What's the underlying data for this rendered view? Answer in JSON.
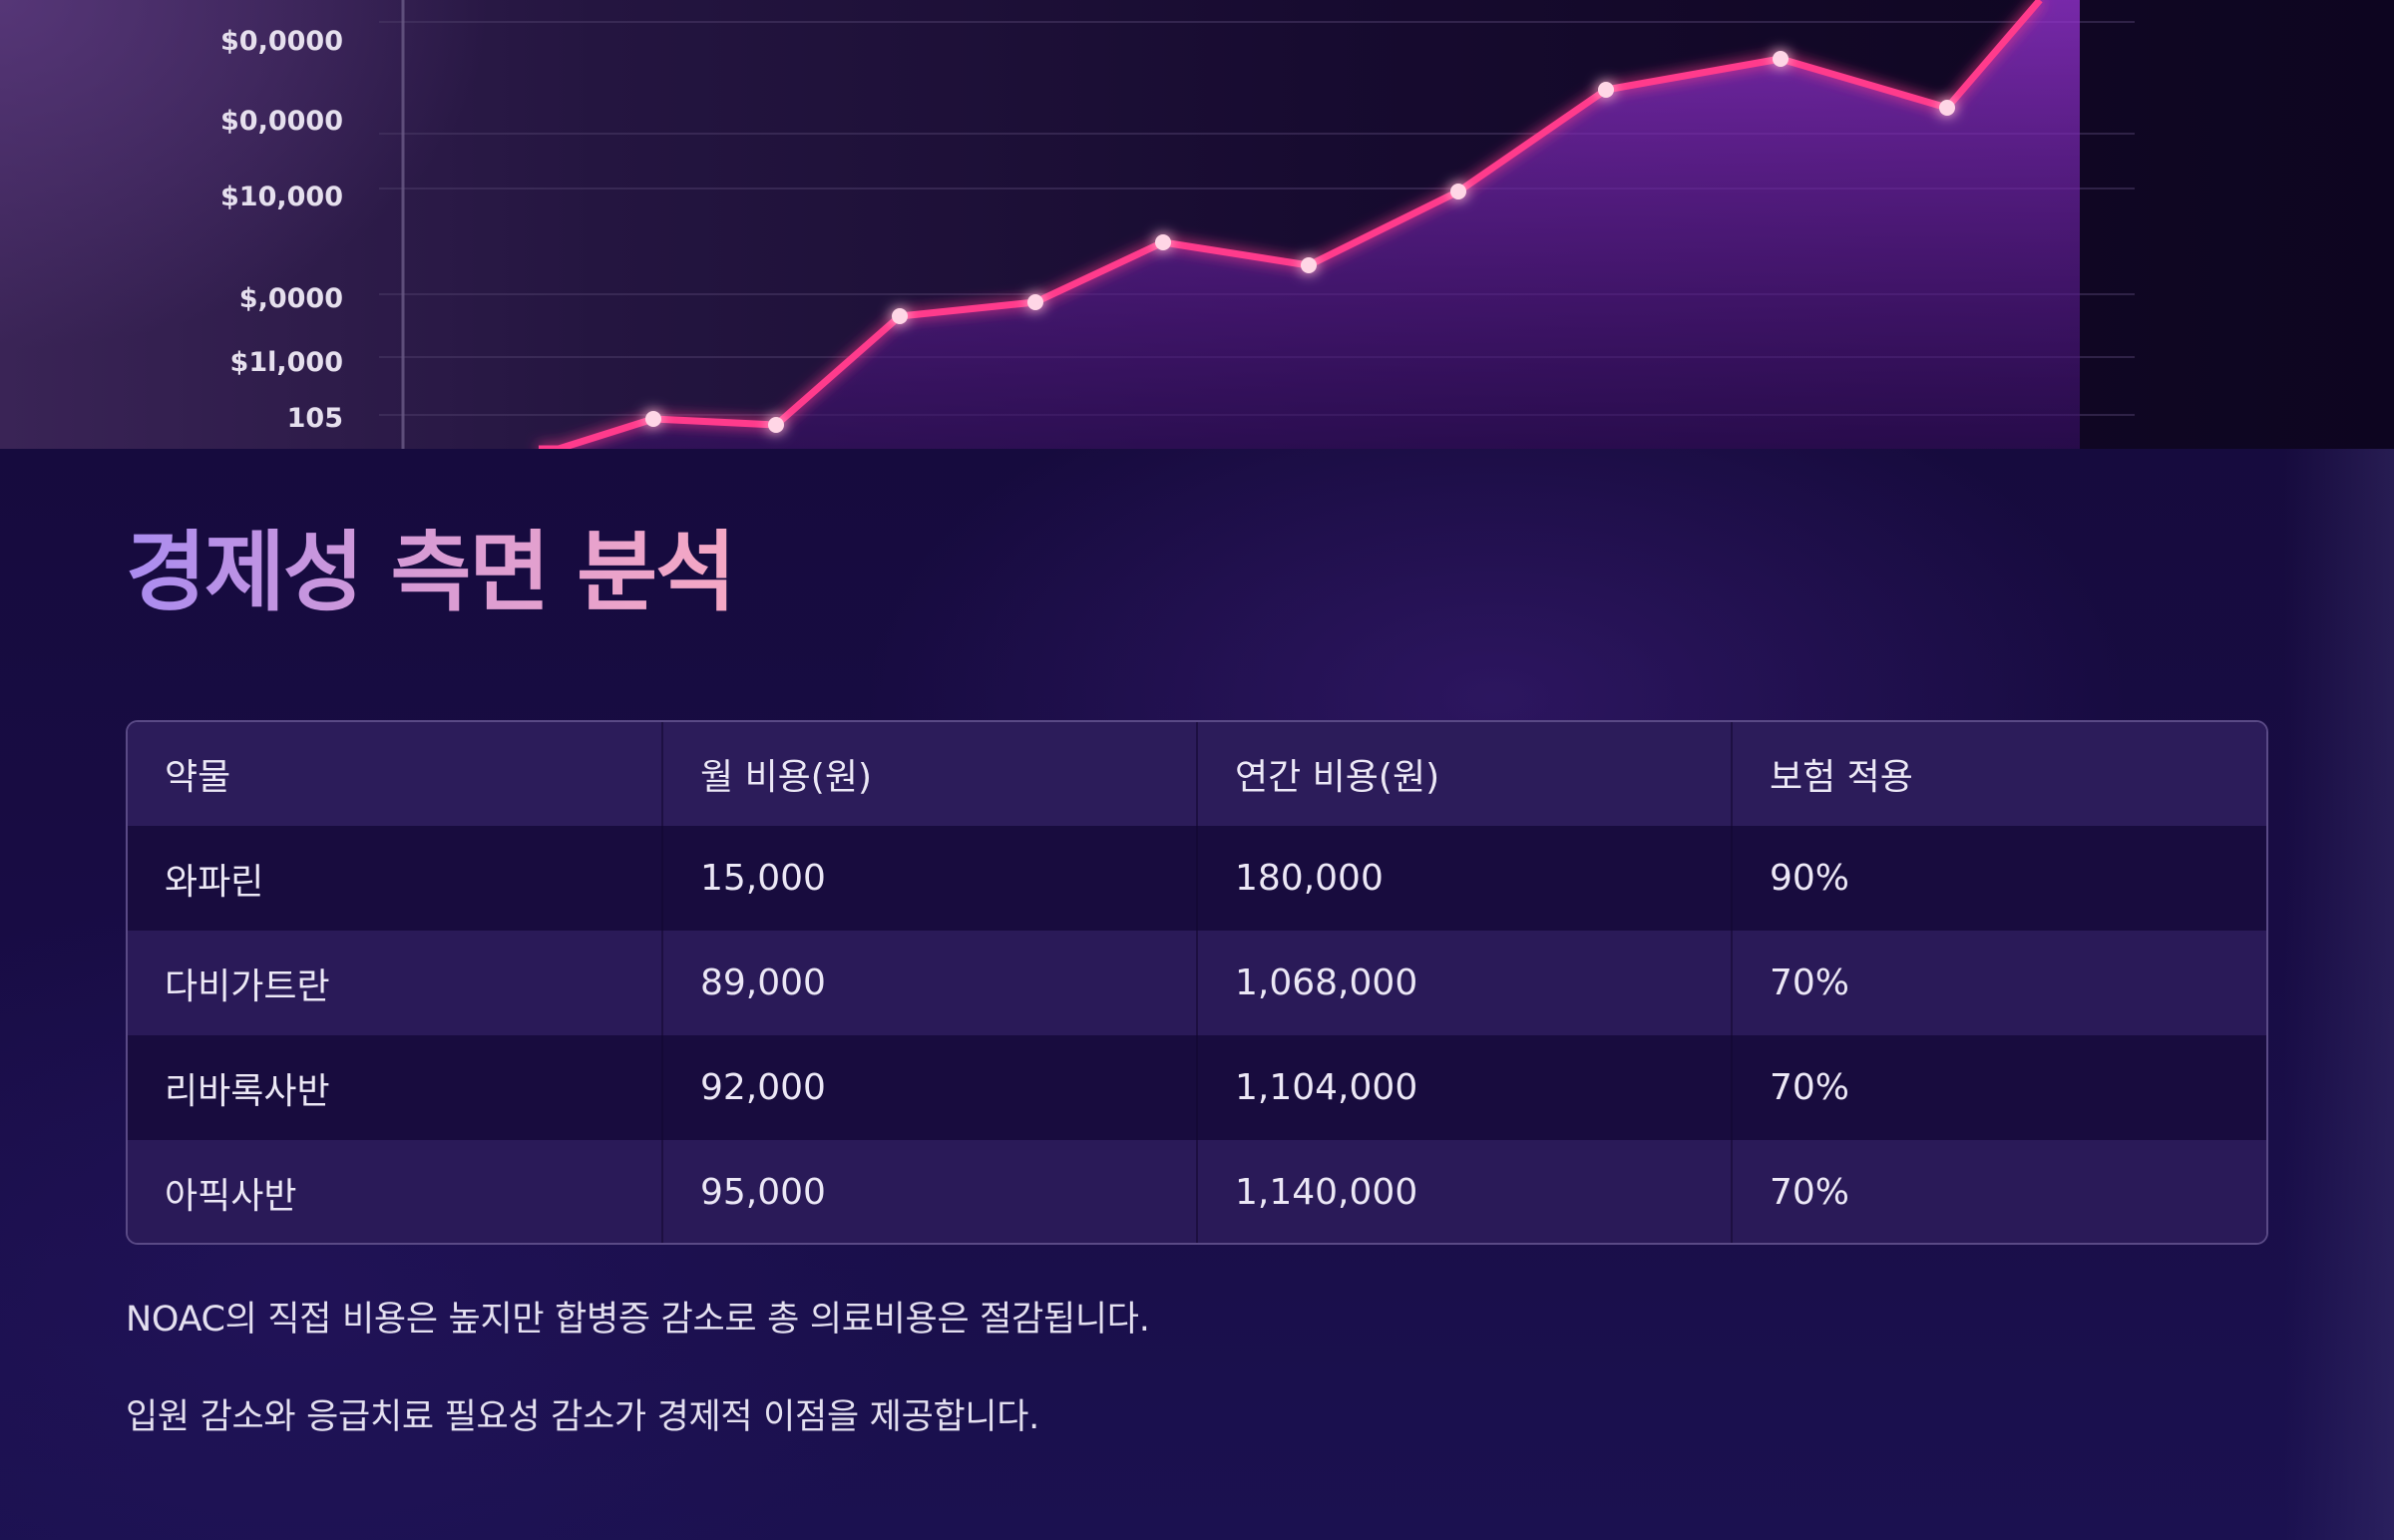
{
  "chart": {
    "y_tick_labels": [
      "$0,0000",
      "$0,0000",
      "$10,000",
      "$,0000",
      "$1l,000",
      "105"
    ],
    "line_color": "#ff3f8e",
    "area_color": "#8a2fc7"
  },
  "section": {
    "title": "경제성 측면 분석"
  },
  "table": {
    "headers": [
      "약물",
      "월 비용(원)",
      "연간 비용(원)",
      "보험 적용"
    ],
    "rows": [
      [
        "와파린",
        "15,000",
        "180,000",
        "90%"
      ],
      [
        "다비가트란",
        "89,000",
        "1,068,000",
        "70%"
      ],
      [
        "리바록사반",
        "92,000",
        "1,104,000",
        "70%"
      ],
      [
        "아픽사반",
        "95,000",
        "1,140,000",
        "70%"
      ]
    ]
  },
  "notes": [
    "NOAC의 직접 비용은 높지만 합병증 감소로 총 의료비용은 절감됩니다.",
    "입원 감소와 응급치료 필요성 감소가 경제적 이점을 제공합니다."
  ]
}
